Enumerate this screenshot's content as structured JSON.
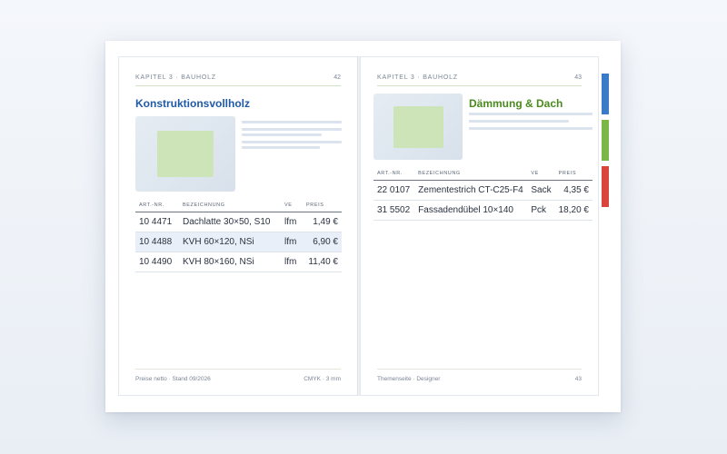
{
  "left_page": {
    "chapter": "KAPITEL 3 · BAUHOLZ",
    "page_number": "42",
    "title": "Konstruktionsvollholz",
    "title_color": "#1f5aa6",
    "table": {
      "headers": [
        "ART.-NR.",
        "BEZEICHNUNG",
        "VE",
        "PREIS"
      ],
      "rows": [
        [
          "10 4471",
          "Dachlatte 30×50, S10",
          "lfm",
          "1,49 €"
        ],
        [
          "10 4488",
          "KVH 60×120, NSi",
          "lfm",
          "6,90 €"
        ],
        [
          "10 4490",
          "KVH 80×160, NSi",
          "lfm",
          "11,40 €"
        ]
      ]
    },
    "footer_left": "Preise netto · Stand 09/2026",
    "footer_right": "CMYK · 3 mm"
  },
  "right_page": {
    "chapter": "KAPITEL 3 · BAUHOLZ",
    "page_number": "43",
    "title": "Dämmung & Dach",
    "title_color": "#4a8a1e",
    "table": {
      "headers": [
        "ART.-NR.",
        "BEZEICHNUNG",
        "VE",
        "PREIS"
      ],
      "rows": [
        [
          "22 0107",
          "Zementestrich CT-C25-F4",
          "Sack",
          "4,35 €"
        ],
        [
          "31 5502",
          "Fassadendübel 10×140",
          "Pck",
          "18,20 €"
        ]
      ]
    },
    "footer_left": "Themenseite · Designer",
    "footer_right": "43"
  },
  "tab_colors": [
    "#3a7bc8",
    "#7ab648",
    "#d9453d"
  ]
}
